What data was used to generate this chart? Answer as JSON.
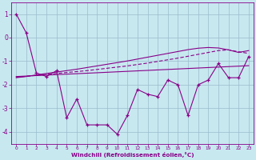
{
  "xlabel": "Windchill (Refroidissement éolien,°C)",
  "background_color": "#c8e8f0",
  "line_color": "#880088",
  "grid_color": "#99bbcc",
  "xlim": [
    -0.5,
    23.5
  ],
  "ylim": [
    -4.5,
    1.5
  ],
  "yticks": [
    1,
    0,
    -1,
    -2,
    -3,
    -4
  ],
  "xticks": [
    0,
    1,
    2,
    3,
    4,
    5,
    6,
    7,
    8,
    9,
    10,
    11,
    12,
    13,
    14,
    15,
    16,
    17,
    18,
    19,
    20,
    21,
    22,
    23
  ],
  "hours": [
    0,
    1,
    2,
    3,
    4,
    5,
    6,
    7,
    8,
    9,
    10,
    11,
    12,
    13,
    14,
    15,
    16,
    17,
    18,
    19,
    20,
    21,
    22,
    23
  ],
  "windchill": [
    1.0,
    0.2,
    -1.5,
    -1.65,
    -1.4,
    -3.4,
    -2.6,
    -3.7,
    -3.7,
    -3.7,
    -4.1,
    -3.3,
    -2.2,
    -2.4,
    -2.5,
    -1.8,
    -2.0,
    -3.3,
    -2.0,
    -1.8,
    -1.1,
    -1.7,
    -1.7,
    -0.8
  ],
  "trend_flat": [
    -1.65,
    -1.63,
    -1.61,
    -1.59,
    -1.57,
    -1.55,
    -1.53,
    -1.51,
    -1.49,
    -1.47,
    -1.45,
    -1.43,
    -1.41,
    -1.39,
    -1.37,
    -1.35,
    -1.33,
    -1.31,
    -1.29,
    -1.27,
    -1.25,
    -1.23,
    -1.21,
    -1.19
  ],
  "trend_rising": [
    -1.7,
    -1.65,
    -1.58,
    -1.52,
    -1.46,
    -1.4,
    -1.34,
    -1.27,
    -1.2,
    -1.13,
    -1.06,
    -0.99,
    -0.91,
    -0.83,
    -0.75,
    -0.67,
    -0.59,
    -0.51,
    -0.45,
    -0.42,
    -0.44,
    -0.52,
    -0.63,
    -0.55
  ],
  "trend_mid": [
    -1.68,
    -1.64,
    -1.6,
    -1.56,
    -1.52,
    -1.48,
    -1.44,
    -1.4,
    -1.35,
    -1.3,
    -1.25,
    -1.2,
    -1.14,
    -1.08,
    -1.01,
    -0.94,
    -0.87,
    -0.79,
    -0.71,
    -0.63,
    -0.55,
    -0.52,
    -0.6,
    -0.67
  ]
}
